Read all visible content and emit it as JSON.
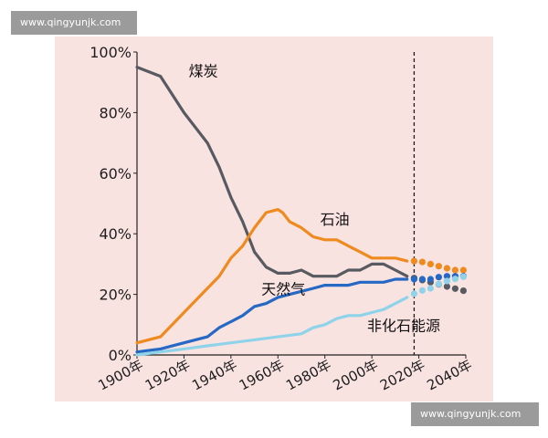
{
  "watermark": {
    "top": "www.qingyunjk.com",
    "bottom": "www.qingyunjk.com"
  },
  "chart_data": {
    "type": "line",
    "title": "",
    "xlabel": "",
    "ylabel": "",
    "x_ticks": [
      "1900年",
      "1920年",
      "1940年",
      "1960年",
      "1980年",
      "2000年",
      "2020年",
      "2040年"
    ],
    "y_ticks": [
      "0%",
      "20%",
      "40%",
      "60%",
      "80%",
      "100%"
    ],
    "xlim": [
      1900,
      2040
    ],
    "ylim": [
      0,
      100
    ],
    "grid": false,
    "divider_x": 2018,
    "series": [
      {
        "name": "煤炭",
        "color": "#575a60",
        "label_year": 1922,
        "label_value": 92,
        "points": [
          [
            1900,
            95
          ],
          [
            1910,
            92
          ],
          [
            1920,
            80
          ],
          [
            1930,
            70
          ],
          [
            1935,
            62
          ],
          [
            1940,
            52
          ],
          [
            1945,
            44
          ],
          [
            1950,
            34
          ],
          [
            1955,
            29
          ],
          [
            1960,
            27
          ],
          [
            1965,
            27
          ],
          [
            1970,
            28
          ],
          [
            1975,
            26
          ],
          [
            1980,
            26
          ],
          [
            1985,
            26
          ],
          [
            1990,
            28
          ],
          [
            1995,
            28
          ],
          [
            2000,
            30
          ],
          [
            2005,
            30
          ],
          [
            2010,
            28
          ],
          [
            2015,
            26
          ],
          [
            2020,
            25
          ],
          [
            2025,
            24
          ],
          [
            2030,
            23
          ],
          [
            2035,
            22
          ],
          [
            2040,
            21
          ]
        ]
      },
      {
        "name": "石油",
        "color": "#ef8a1f",
        "label_year": 1978,
        "label_value": 43,
        "points": [
          [
            1900,
            4
          ],
          [
            1910,
            6
          ],
          [
            1920,
            14
          ],
          [
            1930,
            22
          ],
          [
            1935,
            26
          ],
          [
            1940,
            32
          ],
          [
            1945,
            36
          ],
          [
            1950,
            42
          ],
          [
            1955,
            47
          ],
          [
            1960,
            48
          ],
          [
            1962,
            47
          ],
          [
            1965,
            44
          ],
          [
            1970,
            42
          ],
          [
            1975,
            39
          ],
          [
            1980,
            38
          ],
          [
            1985,
            38
          ],
          [
            1990,
            36
          ],
          [
            1995,
            34
          ],
          [
            2000,
            32
          ],
          [
            2005,
            32
          ],
          [
            2010,
            32
          ],
          [
            2015,
            31
          ],
          [
            2020,
            31
          ],
          [
            2025,
            30
          ],
          [
            2030,
            29
          ],
          [
            2035,
            28
          ],
          [
            2040,
            28
          ]
        ]
      },
      {
        "name": "天然气",
        "color": "#2569c4",
        "label_year": 1953,
        "label_value": 20,
        "points": [
          [
            1900,
            1
          ],
          [
            1910,
            2
          ],
          [
            1920,
            4
          ],
          [
            1930,
            6
          ],
          [
            1935,
            9
          ],
          [
            1940,
            11
          ],
          [
            1945,
            13
          ],
          [
            1950,
            16
          ],
          [
            1955,
            17
          ],
          [
            1960,
            19
          ],
          [
            1965,
            20
          ],
          [
            1970,
            21
          ],
          [
            1975,
            22
          ],
          [
            1980,
            23
          ],
          [
            1985,
            23
          ],
          [
            1990,
            23
          ],
          [
            1995,
            24
          ],
          [
            2000,
            24
          ],
          [
            2005,
            24
          ],
          [
            2010,
            25
          ],
          [
            2015,
            25
          ],
          [
            2020,
            25
          ],
          [
            2025,
            25
          ],
          [
            2030,
            26
          ],
          [
            2035,
            26
          ],
          [
            2040,
            26
          ]
        ]
      },
      {
        "name": "非化石能源",
        "color": "#8fd3ea",
        "label_year": 1998,
        "label_value": 8,
        "points": [
          [
            1900,
            0
          ],
          [
            1910,
            1
          ],
          [
            1920,
            2
          ],
          [
            1930,
            3
          ],
          [
            1940,
            4
          ],
          [
            1950,
            5
          ],
          [
            1960,
            6
          ],
          [
            1970,
            7
          ],
          [
            1975,
            9
          ],
          [
            1980,
            10
          ],
          [
            1985,
            12
          ],
          [
            1990,
            13
          ],
          [
            1995,
            13
          ],
          [
            2000,
            14
          ],
          [
            2005,
            15
          ],
          [
            2010,
            17
          ],
          [
            2015,
            19
          ],
          [
            2020,
            21
          ],
          [
            2025,
            22
          ],
          [
            2030,
            24
          ],
          [
            2035,
            25
          ],
          [
            2040,
            26
          ]
        ]
      }
    ]
  }
}
